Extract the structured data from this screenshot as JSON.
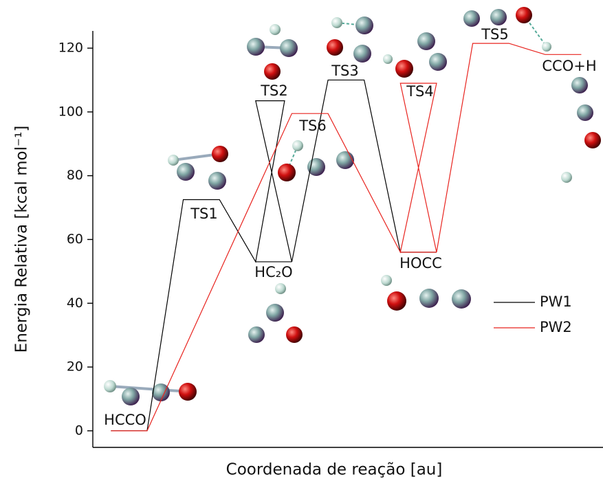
{
  "chart_data": {
    "type": "line",
    "x_label": "Coordenada de reação [au]",
    "y_label": "Energia Relativa [kcal mol⁻¹]",
    "xlim": [
      0,
      14.1
    ],
    "ylim": [
      -5.2,
      125.4
    ],
    "yticks": [
      0,
      20,
      40,
      60,
      80,
      100,
      120
    ],
    "series": [
      {
        "name": "PW1",
        "color": "#000000",
        "x": [
          0.5,
          1.5,
          2.5,
          3.5,
          4.5,
          5.3,
          4.5,
          5.5,
          6.5,
          7.5,
          8.5,
          9.5,
          null,
          4.5,
          5.5
        ],
        "values": [
          0,
          0,
          72.5,
          72.5,
          53,
          103.5,
          103.5,
          53,
          110,
          110,
          56,
          56,
          null,
          53,
          53
        ]
      },
      {
        "name": "PW2",
        "color": "#e8231e",
        "x": [
          0.5,
          1.5,
          5.5,
          6.5,
          8.5,
          9.5,
          8.5,
          9.5,
          10.5,
          11.5,
          12.5,
          13.5,
          null,
          8.5,
          9.5
        ],
        "values": [
          0,
          0,
          99.5,
          99.5,
          56,
          109,
          109,
          56,
          121.5,
          121.5,
          118,
          118,
          null,
          56,
          56
        ]
      }
    ],
    "annotations": [
      {
        "text": "HCCO",
        "color": "#111111"
      },
      {
        "text": "TS1",
        "color": "#111111"
      },
      {
        "text": "HC₂O",
        "color": "#111111"
      },
      {
        "text": "TS2",
        "color": "#111111"
      },
      {
        "text": "TS3",
        "color": "#111111"
      },
      {
        "text": "TS4",
        "color": "#111111"
      },
      {
        "text": "TS5",
        "color": "#111111"
      },
      {
        "text": "TS6",
        "color": "#e8231e"
      },
      {
        "text": "HOCC",
        "color": "#111111"
      },
      {
        "text": "CCO+H",
        "color": "#111111"
      }
    ]
  }
}
